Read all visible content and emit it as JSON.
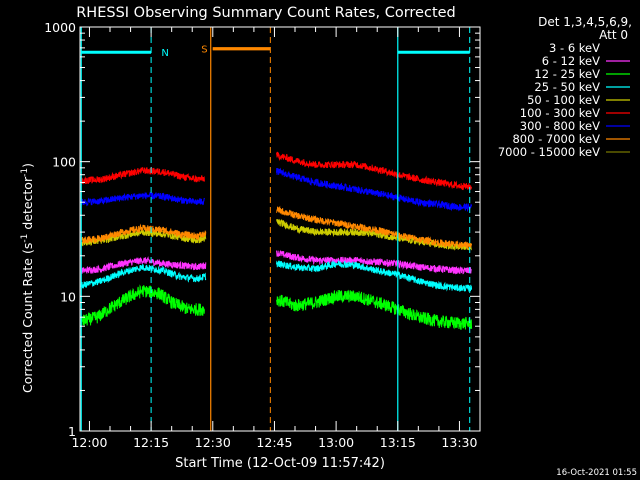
{
  "chart_data": {
    "type": "line",
    "title": "RHESSI Observing Summary Count Rates, Corrected",
    "xlabel": "Start Time (12-Oct-09 11:57:42)",
    "ylabel_main": "Corrected Count Rate (s",
    "ylabel_sup1": "-1",
    "ylabel_mid": " detector",
    "ylabel_sup2": "-1",
    "ylabel_end": ")",
    "y_scale": "log",
    "ylim": [
      1,
      1000
    ],
    "xlim_minutes": [
      -2.3,
      95
    ],
    "y_ticks": [
      {
        "value": 1,
        "label": "1"
      },
      {
        "value": 10,
        "label": "10"
      },
      {
        "value": 100,
        "label": "100"
      },
      {
        "value": 1000,
        "label": "1000"
      }
    ],
    "x_ticks": [
      {
        "t": 0,
        "label": "12:00"
      },
      {
        "t": 15,
        "label": "12:15"
      },
      {
        "t": 30,
        "label": "12:30"
      },
      {
        "t": 45,
        "label": "12:45"
      },
      {
        "t": 60,
        "label": "13:00"
      },
      {
        "t": 75,
        "label": "13:15"
      },
      {
        "t": 90,
        "label": "13:30"
      }
    ],
    "legend_header": [
      "Det 1,3,4,5,6,9,",
      "Att 0"
    ],
    "legend_placement": "right",
    "series": [
      {
        "name": "3 - 6 keV",
        "color": "#000000",
        "points": [
          [
            -2,
            12
          ],
          [
            2,
            12.5
          ],
          [
            8,
            14.5
          ],
          [
            13,
            15.5
          ],
          [
            18,
            14
          ],
          [
            22,
            13
          ],
          [
            26,
            12.3
          ],
          [
            28.3,
            12.5
          ],
          [
            45.5,
            22
          ],
          [
            50,
            19
          ],
          [
            55,
            17.5
          ],
          [
            60,
            16.5
          ],
          [
            65,
            16
          ],
          [
            70,
            15.5
          ],
          [
            75,
            15
          ],
          [
            80,
            14
          ],
          [
            85,
            13
          ],
          [
            90,
            12.5
          ],
          [
            93,
            12.5
          ]
        ]
      },
      {
        "name": "6 - 12 keV",
        "color": "#ff33ff",
        "points": [
          [
            -2,
            15.5
          ],
          [
            3,
            16
          ],
          [
            8,
            17.5
          ],
          [
            13,
            18.5
          ],
          [
            18,
            17.5
          ],
          [
            22,
            17
          ],
          [
            26,
            16.5
          ],
          [
            28.3,
            17
          ],
          [
            45.5,
            21
          ],
          [
            50,
            19.5
          ],
          [
            55,
            18.5
          ],
          [
            60,
            18.5
          ],
          [
            65,
            18.5
          ],
          [
            70,
            18
          ],
          [
            75,
            17.5
          ],
          [
            80,
            16.5
          ],
          [
            85,
            16
          ],
          [
            90,
            15.5
          ],
          [
            93,
            15.5
          ]
        ]
      },
      {
        "name": "12 - 25 keV",
        "color": "#00ff00",
        "points": [
          [
            -2,
            6.5
          ],
          [
            2,
            7
          ],
          [
            6,
            8.5
          ],
          [
            10,
            10
          ],
          [
            13,
            11
          ],
          [
            17,
            10.5
          ],
          [
            20,
            9
          ],
          [
            24,
            8
          ],
          [
            28,
            8
          ],
          [
            45.5,
            9.5
          ],
          [
            50,
            8.5
          ],
          [
            55,
            9
          ],
          [
            60,
            10
          ],
          [
            65,
            10
          ],
          [
            70,
            9
          ],
          [
            75,
            8
          ],
          [
            80,
            7
          ],
          [
            85,
            6.5
          ],
          [
            90,
            6.3
          ],
          [
            93,
            6.3
          ]
        ]
      },
      {
        "name": "25 - 50 keV",
        "color": "#00ffff",
        "points": [
          [
            -2,
            12
          ],
          [
            3,
            13
          ],
          [
            8,
            15
          ],
          [
            13,
            16.5
          ],
          [
            18,
            15.5
          ],
          [
            22,
            14
          ],
          [
            26,
            13.5
          ],
          [
            28.3,
            14
          ],
          [
            45.5,
            17.5
          ],
          [
            50,
            16.5
          ],
          [
            55,
            16
          ],
          [
            60,
            17.5
          ],
          [
            65,
            17
          ],
          [
            70,
            15.5
          ],
          [
            75,
            14.5
          ],
          [
            80,
            13
          ],
          [
            85,
            12
          ],
          [
            90,
            11.5
          ],
          [
            93,
            11.5
          ]
        ]
      },
      {
        "name": "50 - 100 keV",
        "color": "#cccc00",
        "points": [
          [
            -2,
            25
          ],
          [
            3,
            26
          ],
          [
            8,
            28
          ],
          [
            13,
            30
          ],
          [
            18,
            29
          ],
          [
            22,
            27.5
          ],
          [
            26,
            26
          ],
          [
            28.3,
            27
          ],
          [
            45.5,
            36
          ],
          [
            50,
            32
          ],
          [
            55,
            30
          ],
          [
            60,
            30
          ],
          [
            65,
            30
          ],
          [
            70,
            29
          ],
          [
            75,
            27
          ],
          [
            80,
            25.5
          ],
          [
            85,
            24
          ],
          [
            90,
            23.5
          ],
          [
            93,
            23.5
          ]
        ]
      },
      {
        "name": "100 - 300 keV",
        "color": "#ff0000",
        "points": [
          [
            -2,
            72
          ],
          [
            3,
            74
          ],
          [
            8,
            80
          ],
          [
            13,
            86
          ],
          [
            18,
            84
          ],
          [
            22,
            78
          ],
          [
            26,
            74
          ],
          [
            28,
            75
          ],
          [
            45.5,
            112
          ],
          [
            50,
            102
          ],
          [
            55,
            95
          ],
          [
            60,
            95
          ],
          [
            65,
            95
          ],
          [
            70,
            88
          ],
          [
            75,
            80
          ],
          [
            80,
            74
          ],
          [
            85,
            70
          ],
          [
            90,
            66
          ],
          [
            93,
            65
          ]
        ]
      },
      {
        "name": "300 - 800 keV",
        "color": "#0000ff",
        "points": [
          [
            -2,
            50
          ],
          [
            3,
            51
          ],
          [
            8,
            54
          ],
          [
            13,
            56
          ],
          [
            18,
            55
          ],
          [
            22,
            52
          ],
          [
            26,
            50
          ],
          [
            28,
            51
          ],
          [
            45.5,
            85
          ],
          [
            50,
            77
          ],
          [
            55,
            70
          ],
          [
            60,
            66
          ],
          [
            65,
            62
          ],
          [
            70,
            58
          ],
          [
            75,
            54
          ],
          [
            80,
            50
          ],
          [
            85,
            48
          ],
          [
            90,
            46
          ],
          [
            93,
            46
          ]
        ]
      },
      {
        "name": "800 - 7000 keV",
        "color": "#ff8800",
        "points": [
          [
            -2,
            26
          ],
          [
            3,
            27
          ],
          [
            8,
            30
          ],
          [
            13,
            32
          ],
          [
            18,
            31
          ],
          [
            22,
            29
          ],
          [
            26,
            28
          ],
          [
            28.3,
            29
          ],
          [
            45.5,
            44
          ],
          [
            50,
            40
          ],
          [
            55,
            37
          ],
          [
            60,
            35
          ],
          [
            65,
            33
          ],
          [
            70,
            31
          ],
          [
            75,
            28.5
          ],
          [
            80,
            26.5
          ],
          [
            85,
            25
          ],
          [
            90,
            24
          ],
          [
            93,
            24
          ]
        ]
      },
      {
        "name": "7000 - 15000 keV",
        "color": "#777700",
        "points": []
      }
    ],
    "annotations": [
      {
        "label": "N",
        "color": "#00ffff",
        "bar": [
          -2,
          15
        ],
        "bar_y": 650,
        "dashed_at": [
          15,
          92.5
        ],
        "solid_at": [
          -2,
          75
        ]
      },
      {
        "label": "S",
        "color": "#ff8800",
        "bar": [
          30,
          44
        ],
        "bar_y": 690,
        "dashed_at": [
          44
        ],
        "solid_at": [
          29.5
        ]
      }
    ]
  },
  "footer": {
    "timestamp": "16-Oct-2021 01:55"
  }
}
